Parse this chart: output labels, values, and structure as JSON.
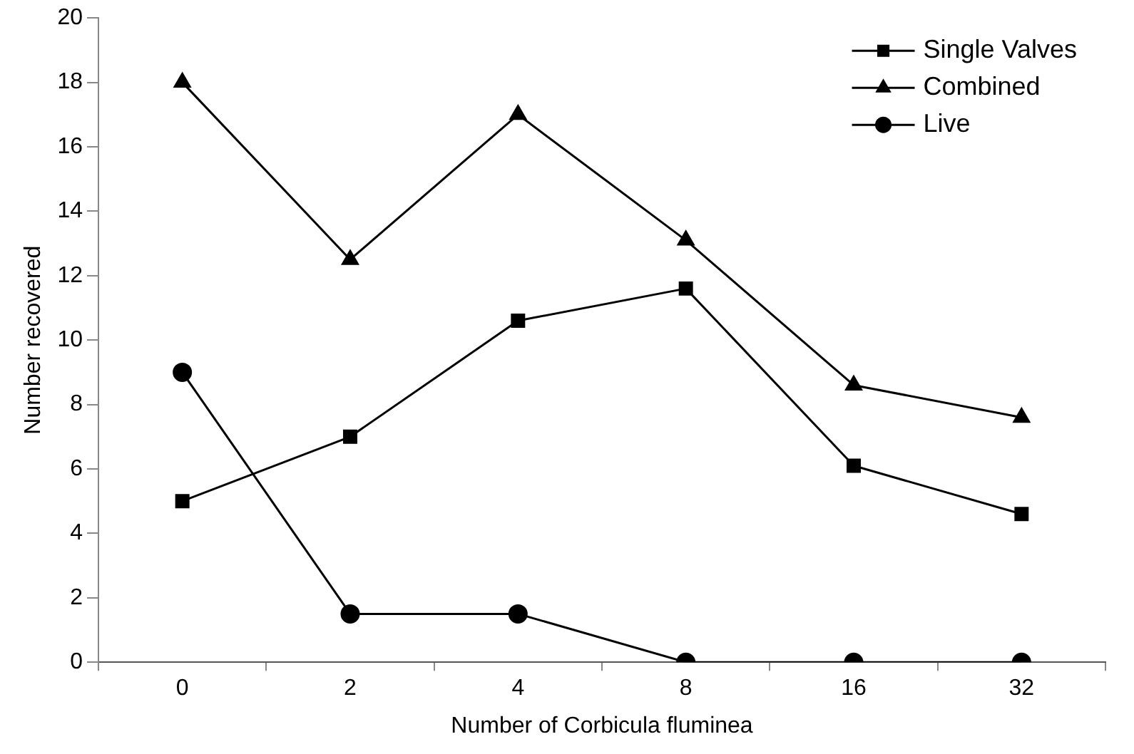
{
  "chart_data": {
    "type": "line",
    "xlabel": "Number of Corbicula fluminea",
    "ylabel": "Number recovered",
    "categories": [
      "0",
      "2",
      "4",
      "8",
      "16",
      "32"
    ],
    "series": [
      {
        "name": "Single Valves",
        "color": "#000000",
        "marker": "square",
        "values": [
          5,
          7,
          10.6,
          11.6,
          6.1,
          4.6
        ]
      },
      {
        "name": "Combined",
        "color": "#000000",
        "marker": "triangle",
        "values": [
          18,
          12.5,
          17,
          13.1,
          8.6,
          7.6
        ]
      },
      {
        "name": "Live",
        "color": "#000000",
        "marker": "circle",
        "values": [
          9,
          1.5,
          1.5,
          0,
          0,
          0
        ]
      }
    ],
    "ylim": [
      0,
      20
    ],
    "yticks": [
      0,
      2,
      4,
      6,
      8,
      10,
      12,
      14,
      16,
      18,
      20
    ],
    "grid": false,
    "legend": "top right",
    "line_style": "solid"
  }
}
